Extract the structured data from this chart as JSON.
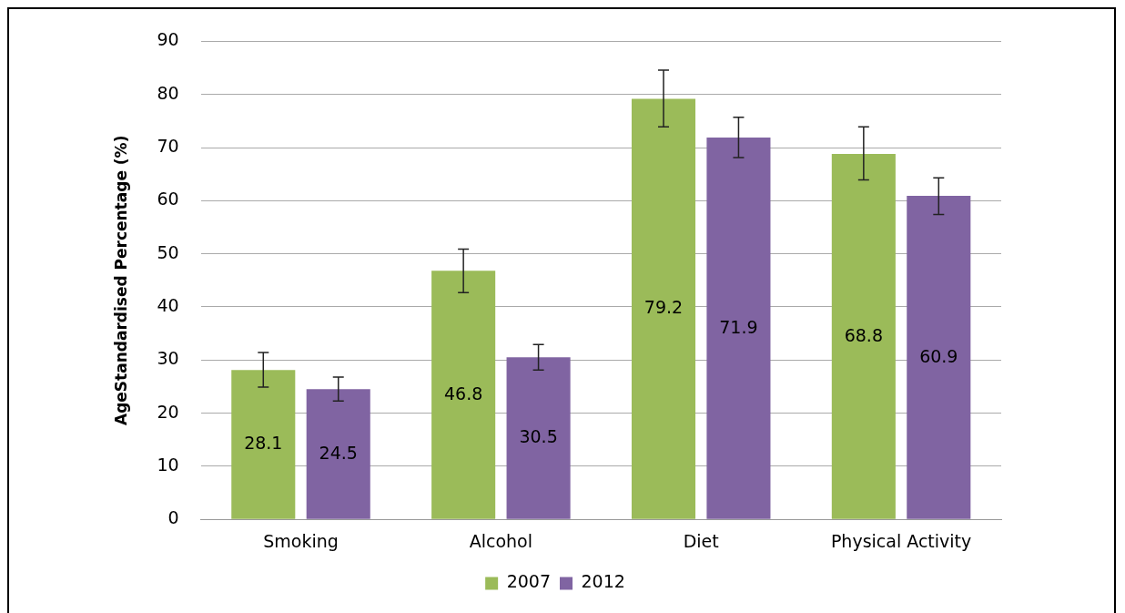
{
  "chart_data": {
    "type": "bar",
    "ylabel": "AgeStandardised Percentage (%)",
    "categories": [
      "Smoking",
      "Alcohol",
      "Diet",
      "Physical Activity"
    ],
    "series": [
      {
        "name": "2007",
        "color": "#9bbb59",
        "values": [
          28.1,
          46.8,
          79.2,
          68.8
        ],
        "errors": [
          [
            24.9,
            31.4
          ],
          [
            42.7,
            50.9
          ],
          [
            73.9,
            84.6
          ],
          [
            63.9,
            73.9
          ]
        ]
      },
      {
        "name": "2012",
        "color": "#8064a2",
        "values": [
          24.5,
          30.5,
          71.9,
          60.9
        ],
        "errors": [
          [
            22.3,
            26.8
          ],
          [
            28.1,
            32.9
          ],
          [
            68.1,
            75.7
          ],
          [
            57.4,
            64.3
          ]
        ]
      }
    ],
    "ylim": [
      0,
      90
    ],
    "yticks": [
      0,
      10,
      20,
      30,
      40,
      50,
      60,
      70,
      80,
      90
    ],
    "grid": "y",
    "legend": "bottom",
    "data_labels": true
  }
}
